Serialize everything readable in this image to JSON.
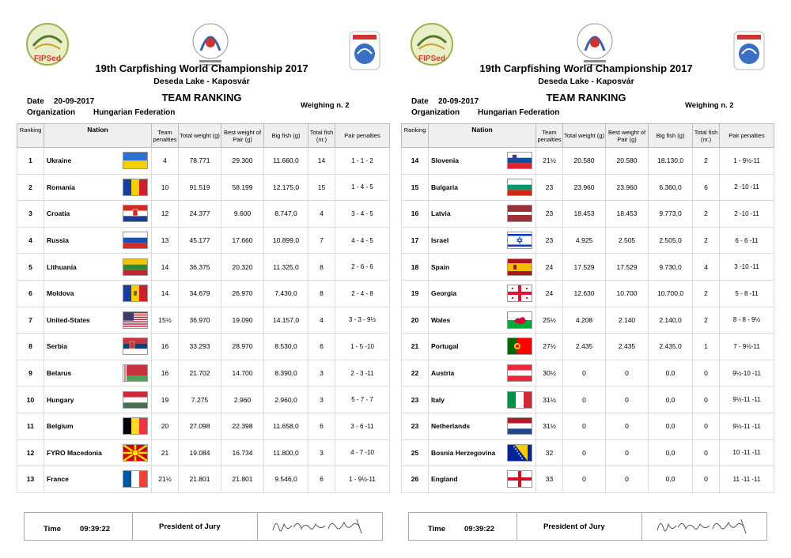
{
  "header": {
    "title": "19th Carpfishing World Championship 2017",
    "subtitle": "Deseda Lake - Kaposvár",
    "date_label": "Date",
    "date_value": "20-09-2017",
    "org_label": "Organization",
    "org_value": "Hungarian Federation",
    "ranking_title": "TEAM RANKING",
    "weighing": "Weighing n. 2",
    "logo_text": "FIPSed"
  },
  "columns": {
    "ranking": "Ranking",
    "nation": "Nation",
    "team_penalties": "Team penalties",
    "total_weight": "Total weight (g)",
    "best_weight": "Best weight of Pair (g)",
    "big_fish": "Big fish (g)",
    "total_fish": "Total fish (nr.)",
    "pair_penalties": "Pair penalties"
  },
  "left_rows": [
    {
      "rank": "1",
      "nation": "Ukraine",
      "flag": "ukraine",
      "team_pen": "4",
      "total": "78.771",
      "best": "29.300",
      "big": "11.660,0",
      "fish": "14",
      "pair": "1 - 1 - 2"
    },
    {
      "rank": "2",
      "nation": "Romania",
      "flag": "romania",
      "team_pen": "10",
      "total": "91.519",
      "best": "58.199",
      "big": "12.175,0",
      "fish": "15",
      "pair": "1 - 4 - 5"
    },
    {
      "rank": "3",
      "nation": "Croatia",
      "flag": "croatia",
      "team_pen": "12",
      "total": "24.377",
      "best": "9.600",
      "big": "8.747,0",
      "fish": "4",
      "pair": "3 - 4 - 5"
    },
    {
      "rank": "4",
      "nation": "Russia",
      "flag": "russia",
      "team_pen": "13",
      "total": "45.177",
      "best": "17.660",
      "big": "10.899,0",
      "fish": "7",
      "pair": "4 - 4 - 5"
    },
    {
      "rank": "5",
      "nation": "Lithuania",
      "flag": "lithuania",
      "team_pen": "14",
      "total": "36.375",
      "best": "20.320",
      "big": "11.325,0",
      "fish": "8",
      "pair": "2 - 6 - 6"
    },
    {
      "rank": "6",
      "nation": "Moldova",
      "flag": "moldova",
      "team_pen": "14",
      "total": "34.679",
      "best": "26.970",
      "big": "7.430,0",
      "fish": "8",
      "pair": "2 - 4 - 8"
    },
    {
      "rank": "7",
      "nation": "United-States",
      "flag": "usa",
      "team_pen": "15½",
      "total": "36.970",
      "best": "19.090",
      "big": "14.157,0",
      "fish": "4",
      "pair": "3 - 3 - 9½"
    },
    {
      "rank": "8",
      "nation": "Serbia",
      "flag": "serbia",
      "team_pen": "16",
      "total": "33.293",
      "best": "28.970",
      "big": "8.530,0",
      "fish": "6",
      "pair": "1 - 5 -10"
    },
    {
      "rank": "9",
      "nation": "Belarus",
      "flag": "belarus",
      "team_pen": "16",
      "total": "21.702",
      "best": "14.700",
      "big": "8.390,0",
      "fish": "3",
      "pair": "2 - 3 -11"
    },
    {
      "rank": "10",
      "nation": "Hungary",
      "flag": "hungary",
      "team_pen": "19",
      "total": "7.275",
      "best": "2.960",
      "big": "2.960,0",
      "fish": "3",
      "pair": "5 - 7 - 7"
    },
    {
      "rank": "11",
      "nation": "Belgium",
      "flag": "belgium",
      "team_pen": "20",
      "total": "27.098",
      "best": "22.398",
      "big": "11.658,0",
      "fish": "6",
      "pair": "3 - 6 -11"
    },
    {
      "rank": "12",
      "nation": "FYRO Macedonia",
      "flag": "macedonia",
      "team_pen": "21",
      "total": "19.084",
      "best": "16.734",
      "big": "11.800,0",
      "fish": "3",
      "pair": "4 - 7 -10"
    },
    {
      "rank": "13",
      "nation": "France",
      "flag": "france",
      "team_pen": "21½",
      "total": "21.801",
      "best": "21.801",
      "big": "9.546,0",
      "fish": "6",
      "pair": "1 - 9½-11"
    }
  ],
  "right_rows": [
    {
      "rank": "14",
      "nation": "Slovenia",
      "flag": "slovenia",
      "team_pen": "21½",
      "total": "20.580",
      "best": "20.580",
      "big": "18.130,0",
      "fish": "2",
      "pair": "1 - 9½-11"
    },
    {
      "rank": "15",
      "nation": "Bulgaria",
      "flag": "bulgaria",
      "team_pen": "23",
      "total": "23.960",
      "best": "23.960",
      "big": "6.360,0",
      "fish": "6",
      "pair": "2 -10 -11"
    },
    {
      "rank": "16",
      "nation": "Latvia",
      "flag": "latvia",
      "team_pen": "23",
      "total": "18.453",
      "best": "18.453",
      "big": "9.773,0",
      "fish": "2",
      "pair": "2 -10 -11"
    },
    {
      "rank": "17",
      "nation": "Israel",
      "flag": "israel",
      "team_pen": "23",
      "total": "4.925",
      "best": "2.505",
      "big": "2.505,0",
      "fish": "2",
      "pair": "6 - 6 -11"
    },
    {
      "rank": "18",
      "nation": "Spain",
      "flag": "spain",
      "team_pen": "24",
      "total": "17.529",
      "best": "17.529",
      "big": "9.730,0",
      "fish": "4",
      "pair": "3 -10 -11"
    },
    {
      "rank": "19",
      "nation": "Georgia",
      "flag": "georgia",
      "team_pen": "24",
      "total": "12.630",
      "best": "10.700",
      "big": "10.700,0",
      "fish": "2",
      "pair": "5 - 8 -11"
    },
    {
      "rank": "20",
      "nation": "Wales",
      "flag": "wales",
      "team_pen": "25½",
      "total": "4.208",
      "best": "2.140",
      "big": "2.140,0",
      "fish": "2",
      "pair": "8 - 8 - 9½"
    },
    {
      "rank": "21",
      "nation": "Portugal",
      "flag": "portugal",
      "team_pen": "27½",
      "total": "2.435",
      "best": "2.435",
      "big": "2.435,0",
      "fish": "1",
      "pair": "7 - 9½-11"
    },
    {
      "rank": "22",
      "nation": "Austria",
      "flag": "austria",
      "team_pen": "30½",
      "total": "0",
      "best": "0",
      "big": "0,0",
      "fish": "0",
      "pair": "9½-10 -11"
    },
    {
      "rank": "23",
      "nation": "Italy",
      "flag": "italy",
      "team_pen": "31½",
      "total": "0",
      "best": "0",
      "big": "0,0",
      "fish": "0",
      "pair": "9½-11 -11"
    },
    {
      "rank": "23",
      "nation": "Netherlands",
      "flag": "netherlands",
      "team_pen": "31½",
      "total": "0",
      "best": "0",
      "big": "0,0",
      "fish": "0",
      "pair": "9½-11 -11"
    },
    {
      "rank": "25",
      "nation": "Bosnia Herzegovina",
      "flag": "bosnia",
      "team_pen": "32",
      "total": "0",
      "best": "0",
      "big": "0,0",
      "fish": "0",
      "pair": "10 -11 -11"
    },
    {
      "rank": "26",
      "nation": "England",
      "flag": "england",
      "team_pen": "33",
      "total": "0",
      "best": "0",
      "big": "0,0",
      "fish": "0",
      "pair": "11 -11 -11"
    }
  ],
  "footer": {
    "time_label": "Time",
    "time_value": "09:39:22",
    "president_label": "President of Jury"
  },
  "colors": {
    "header_bg": "#efefef",
    "border": "#bbbbbb"
  }
}
